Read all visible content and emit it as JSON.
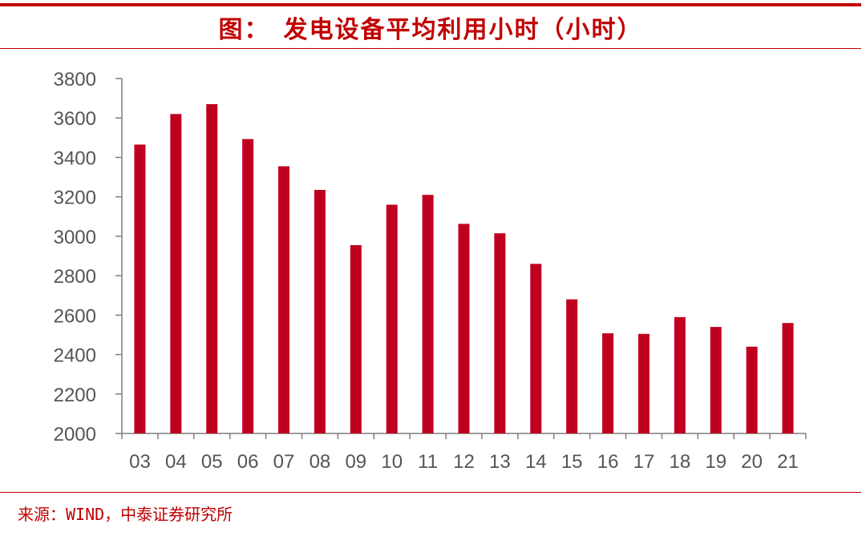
{
  "header": {
    "title": "图：　发电设备平均利用小时（小时）"
  },
  "footer": {
    "source": "来源：WIND，中泰证券研究所"
  },
  "colors": {
    "accent": "#c00000",
    "bar": "#c00020",
    "axis": "#7f7f7f",
    "text": "#555555"
  },
  "chart_data": {
    "type": "bar",
    "title": "图：　发电设备平均利用小时（小时）",
    "xlabel": "",
    "ylabel": "",
    "categories": [
      "03",
      "04",
      "05",
      "06",
      "07",
      "08",
      "09",
      "10",
      "11",
      "12",
      "13",
      "14",
      "15",
      "16",
      "17",
      "18",
      "19",
      "20",
      "21"
    ],
    "values": [
      3465,
      3620,
      3670,
      3493,
      3355,
      3235,
      2955,
      3160,
      3210,
      3063,
      3015,
      2860,
      2680,
      2508,
      2505,
      2590,
      2540,
      2440,
      2560
    ],
    "ylim": [
      2000,
      3800
    ],
    "yticks": [
      2000,
      2200,
      2400,
      2600,
      2800,
      3000,
      3200,
      3400,
      3600,
      3800
    ],
    "ytick_labels": [
      "2000",
      "2200",
      "2400",
      "2600",
      "2800",
      "3000",
      "3200",
      "3400",
      "3600",
      "3800"
    ],
    "grid": false,
    "legend": "none"
  }
}
